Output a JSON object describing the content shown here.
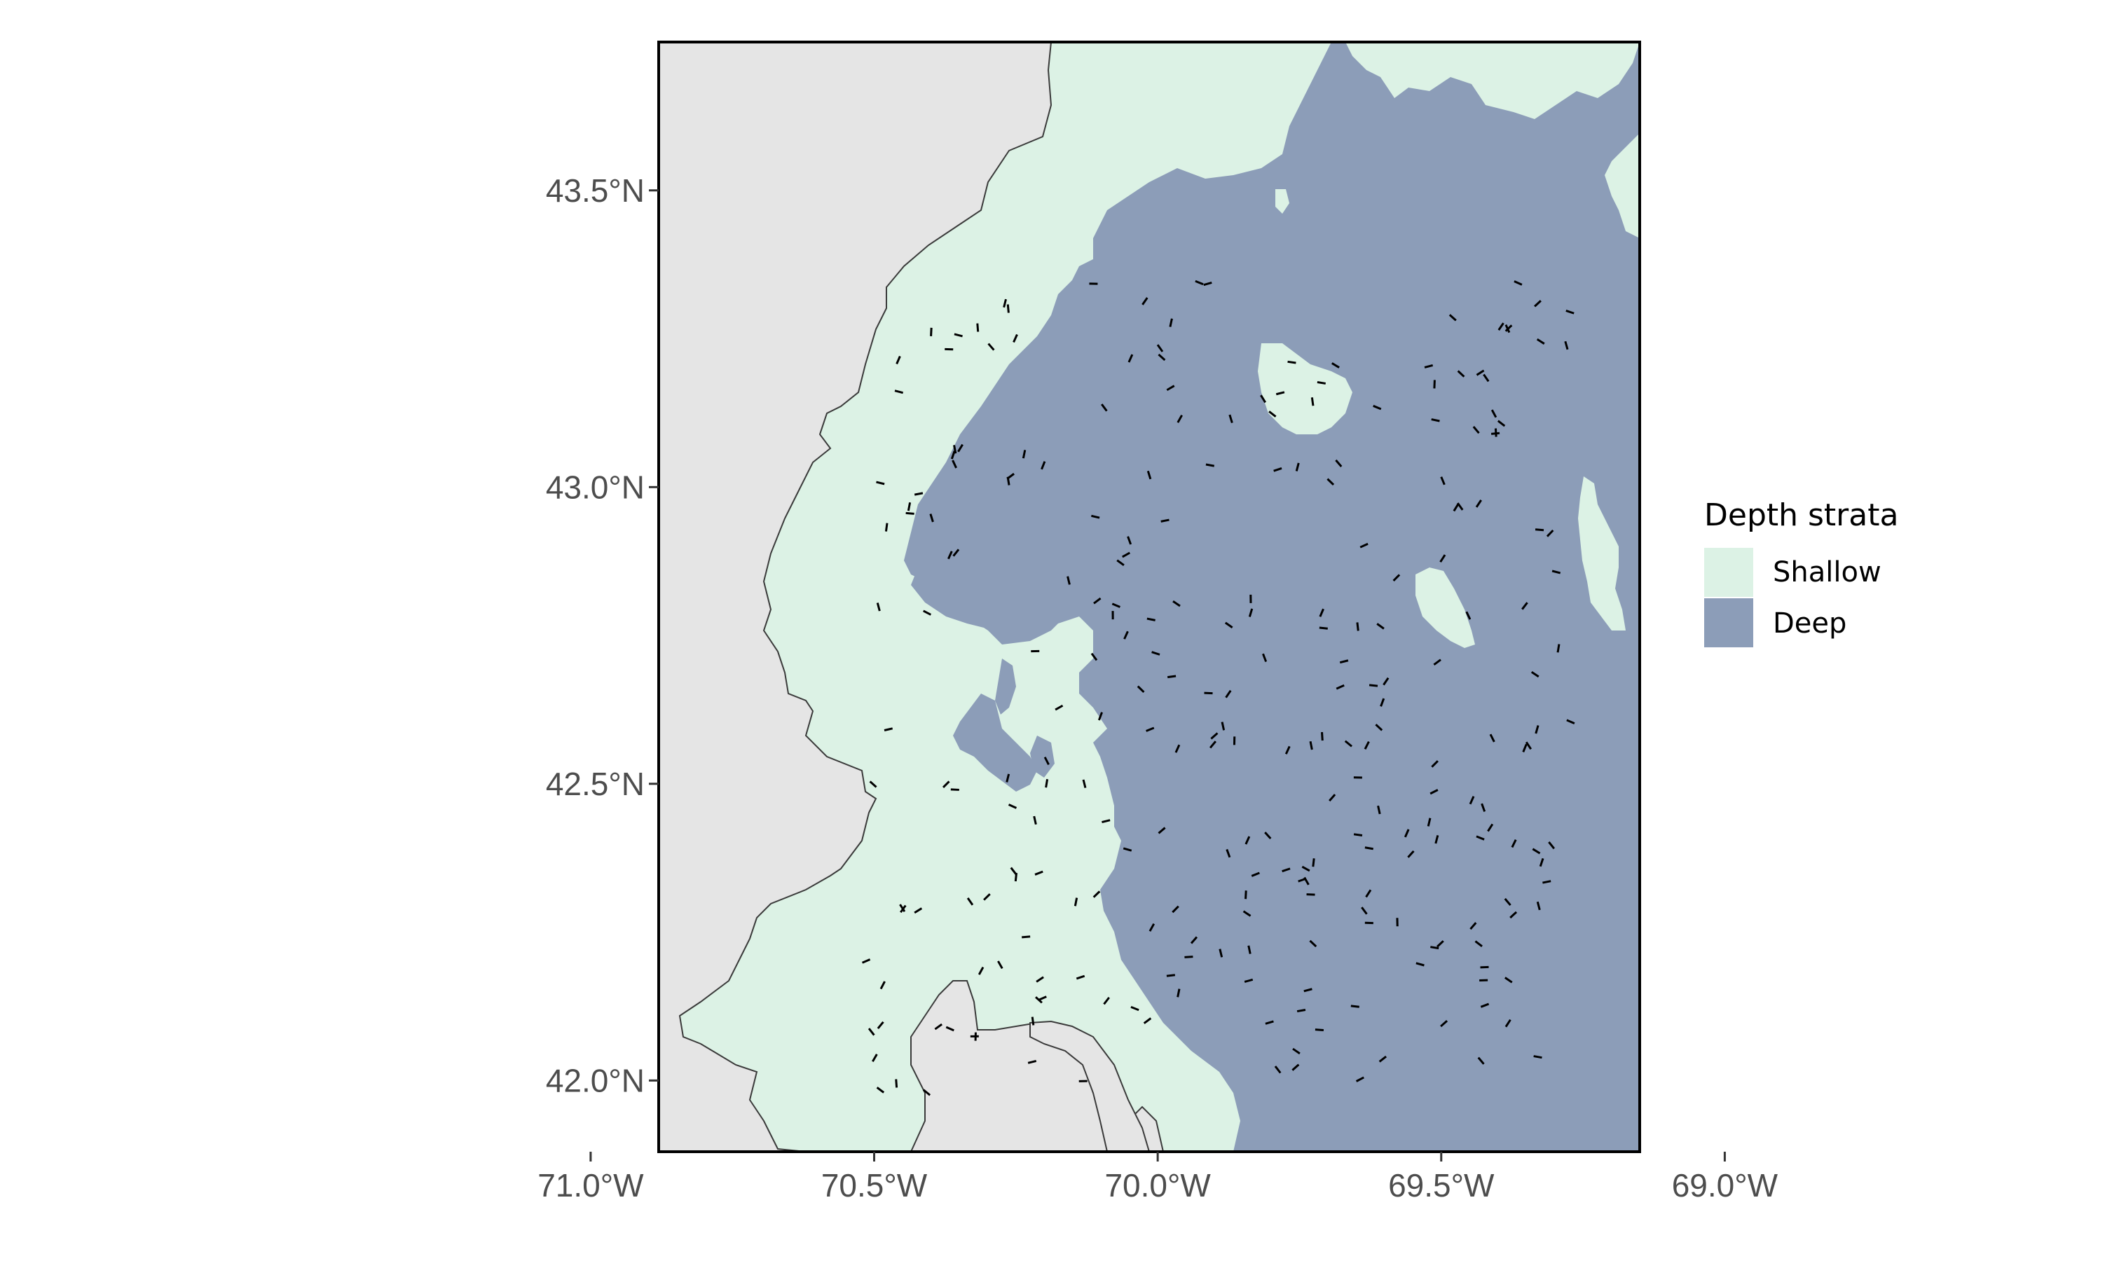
{
  "map": {
    "lon_range": [
      -70.88,
      -69.15
    ],
    "lat_range": [
      41.88,
      43.75
    ],
    "x_ticks": [
      {
        "value": -71.0,
        "label": "71.0°W"
      },
      {
        "value": -70.5,
        "label": "70.5°W"
      },
      {
        "value": -70.0,
        "label": "70.0°W"
      },
      {
        "value": -69.5,
        "label": "69.5°W"
      },
      {
        "value": -69.0,
        "label": "69.0°W"
      }
    ],
    "y_ticks": [
      {
        "value": 43.5,
        "label": "43.5°N"
      },
      {
        "value": 43.0,
        "label": "43.0°N"
      },
      {
        "value": 42.5,
        "label": "42.5°N"
      },
      {
        "value": 42.0,
        "label": "42.0°N"
      }
    ],
    "colors": {
      "land": "#e5e5e5",
      "shallow": "#dcf2e5",
      "deep": "#8c9db8",
      "coastline": "#3a3a3a",
      "tow_marks": "#000000",
      "frame": "#000000"
    }
  },
  "legend": {
    "title": "Depth strata",
    "items": [
      {
        "label": "Shallow",
        "color": "#dcf2e5"
      },
      {
        "label": "Deep",
        "color": "#8c9db8"
      }
    ]
  }
}
